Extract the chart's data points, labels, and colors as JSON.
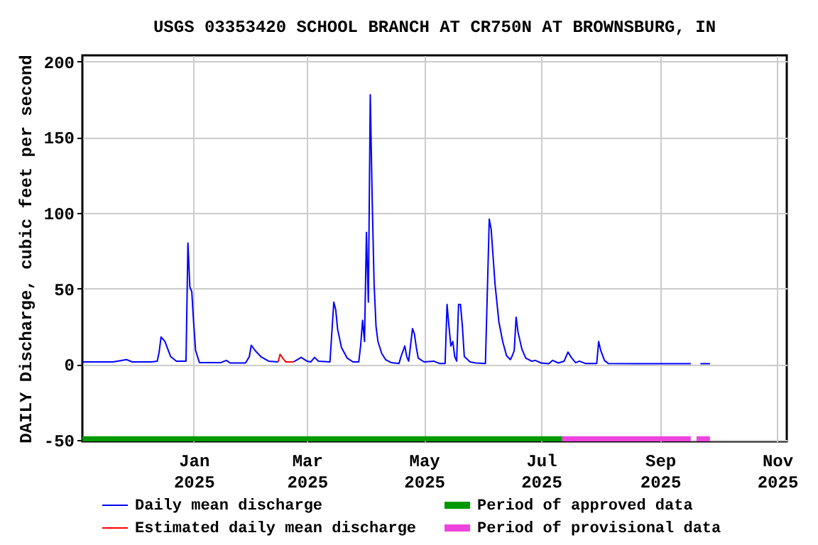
{
  "chart_data": {
    "type": "line",
    "title": "USGS 03353420 SCHOOL BRANCH AT CR750N AT BROWNSBURG, IN",
    "ylabel": "DAILY Discharge, cubic feet per second",
    "xlim": [
      "2024-11-04",
      "2025-11-06"
    ],
    "ylim": [
      -51,
      204
    ],
    "yticks": [
      -50,
      0,
      50,
      100,
      150,
      200
    ],
    "xticks": [
      {
        "value": "2025-01-01",
        "label": "Jan 2025"
      },
      {
        "value": "2025-03-01",
        "label": "Mar 2025"
      },
      {
        "value": "2025-05-01",
        "label": "May 2025"
      },
      {
        "value": "2025-07-01",
        "label": "Jul 2025"
      },
      {
        "value": "2025-09-01",
        "label": "Sep 2025"
      },
      {
        "value": "2025-11-01",
        "label": "Nov 2025"
      }
    ],
    "grid": true,
    "legend": "bottom",
    "series": [
      {
        "name": "Daily mean discharge",
        "color": "#0000ff",
        "x": [
          "2024-11-04",
          "2024-11-10",
          "2024-11-20",
          "2024-11-27",
          "2024-11-30",
          "2024-12-10",
          "2024-12-13",
          "2024-12-14",
          "2024-12-15",
          "2024-12-17",
          "2024-12-20",
          "2024-12-23",
          "2024-12-28",
          "2024-12-29",
          "2024-12-30",
          "2024-12-31",
          "2025-01-01",
          "2025-01-02",
          "2025-01-04",
          "2025-01-15",
          "2025-01-18",
          "2025-01-20",
          "2025-01-28",
          "2025-01-30",
          "2025-01-31",
          "2025-02-02",
          "2025-02-05",
          "2025-02-09",
          "2025-02-14",
          "2025-02-15",
          "2025-02-22",
          "2025-02-26",
          "2025-03-01",
          "2025-03-03",
          "2025-03-05",
          "2025-03-07",
          "2025-03-13",
          "2025-03-15",
          "2025-03-16",
          "2025-03-17",
          "2025-03-19",
          "2025-03-22",
          "2025-03-25",
          "2025-03-28",
          "2025-03-29",
          "2025-03-30",
          "2025-03-31",
          "2025-04-01",
          "2025-04-02",
          "2025-04-03",
          "2025-04-04",
          "2025-04-05",
          "2025-04-06",
          "2025-04-07",
          "2025-04-09",
          "2025-04-11",
          "2025-04-14",
          "2025-04-18",
          "2025-04-19",
          "2025-04-21",
          "2025-04-22",
          "2025-04-23",
          "2025-04-24",
          "2025-04-25",
          "2025-04-26",
          "2025-04-27",
          "2025-04-28",
          "2025-05-01",
          "2025-05-06",
          "2025-05-09",
          "2025-05-12",
          "2025-05-13",
          "2025-05-14",
          "2025-05-15",
          "2025-05-16",
          "2025-05-17",
          "2025-05-18",
          "2025-05-19",
          "2025-05-20",
          "2025-05-21",
          "2025-05-22",
          "2025-05-25",
          "2025-05-28",
          "2025-06-02",
          "2025-06-03",
          "2025-06-04",
          "2025-06-05",
          "2025-06-06",
          "2025-06-07",
          "2025-06-09",
          "2025-06-11",
          "2025-06-13",
          "2025-06-15",
          "2025-06-16",
          "2025-06-17",
          "2025-06-18",
          "2025-06-19",
          "2025-06-21",
          "2025-06-23",
          "2025-06-26",
          "2025-06-28",
          "2025-07-01",
          "2025-07-05",
          "2025-07-07",
          "2025-07-10",
          "2025-07-13",
          "2025-07-15",
          "2025-07-17",
          "2025-07-19",
          "2025-07-21",
          "2025-07-24",
          "2025-07-30",
          "2025-07-31",
          "2025-08-01",
          "2025-08-03",
          "2025-08-05",
          "2025-08-20",
          "2025-09-17",
          "2025-09-19",
          "2025-09-22",
          "2025-09-27"
        ],
        "values": [
          1.5,
          1.5,
          1.5,
          3,
          1.5,
          1.5,
          2,
          8,
          18,
          15,
          5,
          2,
          2,
          80,
          51,
          48,
          27,
          9,
          1,
          1,
          2.5,
          0.8,
          0.8,
          5,
          12.5,
          9,
          5,
          2,
          1.5,
          null,
          1.5,
          4.5,
          2,
          1.5,
          4.5,
          2,
          1.5,
          41,
          36,
          23,
          11,
          4,
          1.5,
          1.5,
          12.5,
          29,
          15,
          87,
          41,
          178,
          109,
          53,
          25,
          15,
          7,
          3,
          1,
          0.5,
          5,
          12,
          5,
          2,
          12.5,
          23.5,
          20,
          11,
          4,
          1.5,
          2,
          0.5,
          0.5,
          39.5,
          25,
          12,
          15,
          5,
          2,
          39.5,
          39.5,
          25,
          5,
          1.5,
          0.8,
          0.5,
          48,
          95.8,
          89,
          71,
          53,
          28,
          15,
          5.6,
          3,
          5.6,
          9,
          31,
          21,
          10,
          4,
          2,
          2.5,
          0.8,
          0.3,
          2.5,
          0.8,
          2,
          8,
          4,
          1,
          2,
          0.5,
          0.5,
          15,
          9.4,
          2.5,
          0.5,
          0.3,
          0.3,
          null,
          0.3,
          0.3
        ]
      },
      {
        "name": "Estimated daily mean discharge",
        "color": "#ff0000",
        "x": [
          "2025-02-14",
          "2025-02-15",
          "2025-02-17",
          "2025-02-18",
          "2025-02-22"
        ],
        "values": [
          1.5,
          6.5,
          3,
          1.5,
          1.5
        ]
      },
      {
        "name": "Period of approved data",
        "color": "#009900",
        "x": [
          "2024-11-04",
          "2025-07-12"
        ],
        "values": [
          -50,
          -50
        ]
      },
      {
        "name": "Period of provisional data",
        "color": "#ee44dd",
        "x": [
          "2025-07-12",
          "2025-09-17",
          "2025-09-18",
          "2025-09-20",
          "2025-09-27"
        ],
        "values": [
          -50,
          -50,
          null,
          -50,
          -50
        ]
      }
    ]
  }
}
